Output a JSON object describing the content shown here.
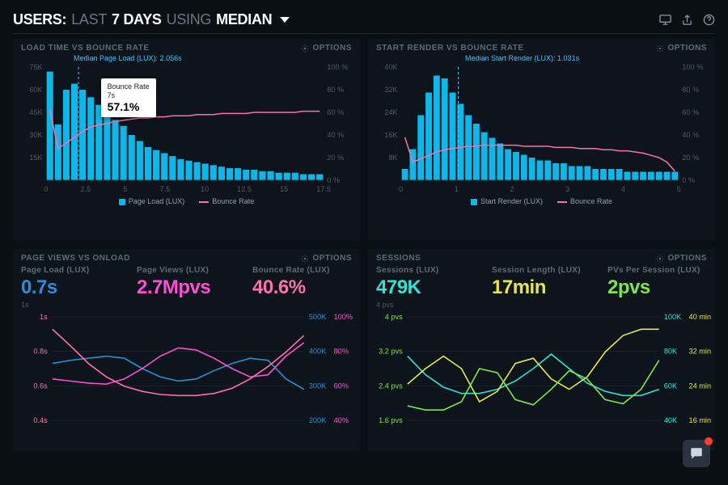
{
  "header": {
    "prefix": "USERS:",
    "range_light": "LAST",
    "range_bold": "7 DAYS",
    "using_light": "USING",
    "metric_bold": "MEDIAN"
  },
  "icons": {
    "monitor": "monitor-icon",
    "share": "share-icon",
    "help": "help-icon"
  },
  "options_label": "OPTIONS",
  "colors": {
    "bg": "#0a0f14",
    "panel": "#0d141b",
    "axis": "#4e5a66",
    "bar": "#0fb6e8",
    "bounce_line": "#ff6fa8",
    "cyan": "#2fe3d0",
    "magenta": "#ff4fd4",
    "green": "#7fe552",
    "yellow": "#e5e552",
    "blue_line": "#2a8fd6"
  },
  "chart1": {
    "title": "LOAD TIME VS BOUNCE RATE",
    "type": "bar+line",
    "y_left_max": 75,
    "y_left_unit": "K",
    "y_left_ticks": [
      75,
      60,
      45,
      30,
      15
    ],
    "y_right_max": 100,
    "y_right_unit": "%",
    "y_right_ticks": [
      100,
      80,
      60,
      40,
      20,
      0
    ],
    "x_min": 0,
    "x_max": 17.5,
    "x_tick_step": 2.5,
    "bar_color": "#0fb6e8",
    "line_color": "#ff6fa8",
    "bar_values": [
      72,
      37,
      60,
      64,
      60,
      55,
      50,
      44,
      40,
      36,
      30,
      26,
      22,
      20,
      18,
      16,
      14,
      13,
      12,
      11,
      10,
      9,
      8,
      8,
      7,
      7,
      6,
      6,
      5,
      5,
      5,
      4,
      4,
      4
    ],
    "bounce_values": [
      62,
      28,
      33,
      38,
      43,
      47,
      49,
      50,
      52,
      53,
      54,
      55,
      55,
      56,
      56,
      57,
      57,
      57,
      58,
      58,
      58,
      59,
      59,
      59,
      59,
      60,
      60,
      60,
      60,
      60,
      60,
      61,
      61,
      61
    ],
    "median_label": "Median Page Load (LUX): 2.056s",
    "median_x": 2.056,
    "tooltip": {
      "title": "Bounce Rate",
      "sub": "7s",
      "value": "57.1%",
      "at_x": 4.2
    },
    "legend": {
      "bar": "Page Load (LUX)",
      "line": "Bounce Rate"
    }
  },
  "chart2": {
    "title": "START RENDER VS BOUNCE RATE",
    "type": "bar+line",
    "y_left_max": 40,
    "y_left_unit": "K",
    "y_left_ticks": [
      40,
      32,
      24,
      16,
      8
    ],
    "y_right_max": 100,
    "y_right_unit": "%",
    "y_right_ticks": [
      100,
      80,
      60,
      40,
      20,
      0
    ],
    "x_min": 0,
    "x_max": 5,
    "x_tick_step": 1,
    "bar_color": "#0fb6e8",
    "line_color": "#ff6fa8",
    "bar_values": [
      4,
      11,
      23,
      31,
      37,
      36,
      31,
      27,
      23,
      20,
      17,
      15,
      13,
      11,
      10,
      9,
      8,
      7,
      7,
      6,
      6,
      5,
      5,
      5,
      4,
      4,
      4,
      4,
      3,
      3,
      3,
      3,
      3,
      3,
      3
    ],
    "bounce_values": [
      38,
      16,
      19,
      22,
      25,
      27,
      28,
      29,
      30,
      30,
      31,
      31,
      31,
      31,
      31,
      30,
      30,
      30,
      30,
      29,
      29,
      29,
      28,
      28,
      28,
      27,
      27,
      26,
      26,
      25,
      24,
      22,
      20,
      16,
      8
    ],
    "median_label": "Median Start Render (LUX): 1.031s",
    "median_x": 1.031,
    "legend": {
      "bar": "Start Render (LUX)",
      "line": "Bounce Rate"
    }
  },
  "chart3": {
    "title": "PAGE VIEWS VS ONLOAD",
    "type": "multiline",
    "stats": [
      {
        "label": "Page Load (LUX)",
        "value": "0.7s",
        "color": "#2a8fd6",
        "sub": "1s"
      },
      {
        "label": "Page Views (LUX)",
        "value": "2.7Mpvs",
        "color": "#ff4fd4",
        "sub": ""
      },
      {
        "label": "Bounce Rate (LUX)",
        "value": "40.6%",
        "color": "#ff6fa8",
        "sub": ""
      }
    ],
    "y_left_ticks": [
      "1s",
      "0.8s",
      "0.6s",
      "0.4s"
    ],
    "y_right_vals": [
      "500K",
      "400K",
      "300K",
      "200K"
    ],
    "y_right_pcts": [
      "100%",
      "80%",
      "60%",
      "40%"
    ],
    "series": {
      "page_load": {
        "color": "#2a8fd6",
        "points": [
          0.55,
          0.58,
          0.6,
          0.62,
          0.6,
          0.5,
          0.42,
          0.38,
          0.4,
          0.48,
          0.55,
          0.6,
          0.58,
          0.4,
          0.3
        ]
      },
      "page_views": {
        "color": "#ff4fd4",
        "points": [
          0.4,
          0.38,
          0.36,
          0.35,
          0.4,
          0.5,
          0.62,
          0.7,
          0.68,
          0.6,
          0.5,
          0.42,
          0.44,
          0.62,
          0.75
        ]
      },
      "bounce": {
        "color": "#ff6fa8",
        "points": [
          0.88,
          0.72,
          0.55,
          0.42,
          0.33,
          0.28,
          0.25,
          0.24,
          0.24,
          0.26,
          0.31,
          0.4,
          0.52,
          0.66,
          0.82
        ]
      }
    }
  },
  "chart4": {
    "title": "SESSIONS",
    "type": "multiline",
    "stats": [
      {
        "label": "Sessions (LUX)",
        "value": "479K",
        "color": "#2fe3d0",
        "sub": "4 pvs"
      },
      {
        "label": "Session Length (LUX)",
        "value": "17min",
        "color": "#e5e552",
        "sub": ""
      },
      {
        "label": "PVs Per Session (LUX)",
        "value": "2pvs",
        "color": "#7fe552",
        "sub": ""
      }
    ],
    "y_left_ticks": [
      "4 pvs",
      "3.2 pvs",
      "2.4 pvs",
      "1.6 pvs"
    ],
    "y_right_vals": [
      "100K",
      "80K",
      "60K",
      "40K"
    ],
    "y_right_pcts": [
      "40 min",
      "32 min",
      "24 min",
      "16 min"
    ],
    "series": {
      "sessions": {
        "color": "#2fe3d0",
        "points": [
          0.62,
          0.44,
          0.32,
          0.26,
          0.26,
          0.3,
          0.38,
          0.5,
          0.64,
          0.5,
          0.36,
          0.28,
          0.24,
          0.24,
          0.3
        ]
      },
      "length": {
        "color": "#e5e552",
        "points": [
          0.35,
          0.5,
          0.62,
          0.5,
          0.18,
          0.28,
          0.55,
          0.6,
          0.4,
          0.3,
          0.42,
          0.66,
          0.82,
          0.88,
          0.88
        ]
      },
      "pvs": {
        "color": "#7fe552",
        "points": [
          0.14,
          0.1,
          0.1,
          0.18,
          0.5,
          0.46,
          0.2,
          0.15,
          0.3,
          0.48,
          0.4,
          0.2,
          0.16,
          0.3,
          0.58
        ]
      }
    }
  }
}
